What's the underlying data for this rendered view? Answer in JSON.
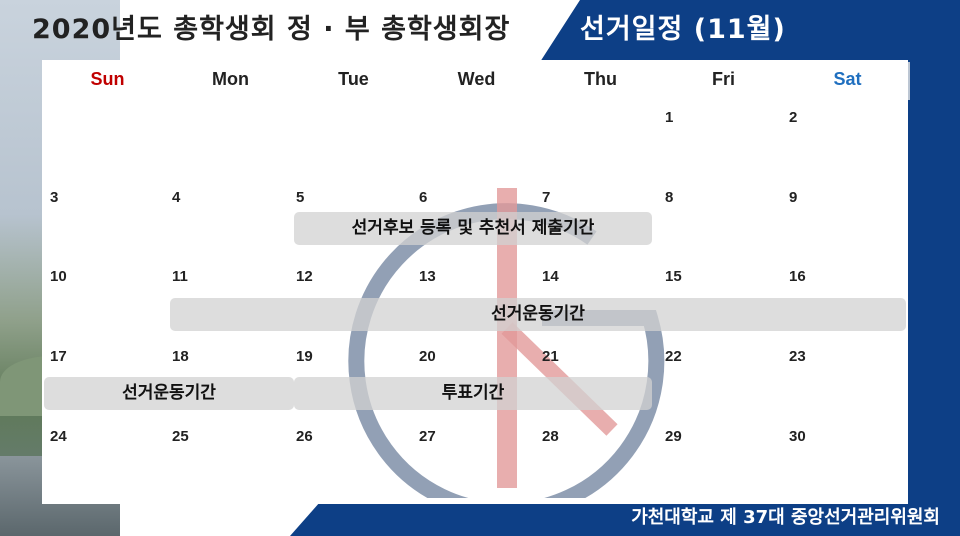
{
  "title": {
    "main": "2020년도 총학생회 정 · 부 총학생회장",
    "highlight": "선거일정 (11월)"
  },
  "footer": "가천대학교 제 37대 중앙선거관리위원회",
  "colors": {
    "sunday": "#c00000",
    "saturday": "#1f6fbf",
    "brand_blue": "#0d3f86",
    "event_bar": "#d2d2d2"
  },
  "calendar": {
    "headers": [
      "Sun",
      "Mon",
      "Tue",
      "Wed",
      "Thu",
      "Fri",
      "Sat"
    ],
    "weeks": [
      [
        "",
        "",
        "",
        "",
        "",
        "1",
        "2"
      ],
      [
        "3",
        "4",
        "5",
        "6",
        "7",
        "8",
        "9"
      ],
      [
        "10",
        "11",
        "12",
        "13",
        "14",
        "15",
        "16"
      ],
      [
        "17",
        "18",
        "19",
        "20",
        "21",
        "22",
        "23"
      ],
      [
        "24",
        "25",
        "26",
        "27",
        "28",
        "29",
        "30"
      ]
    ],
    "events": [
      {
        "label": "선거후보 등록 및 추천서 제출기간"
      },
      {
        "label": "선거운동기간"
      },
      {
        "label": "선거운동기간"
      },
      {
        "label": "투표기간"
      }
    ]
  },
  "watermark_icon": "election-logo-icon"
}
